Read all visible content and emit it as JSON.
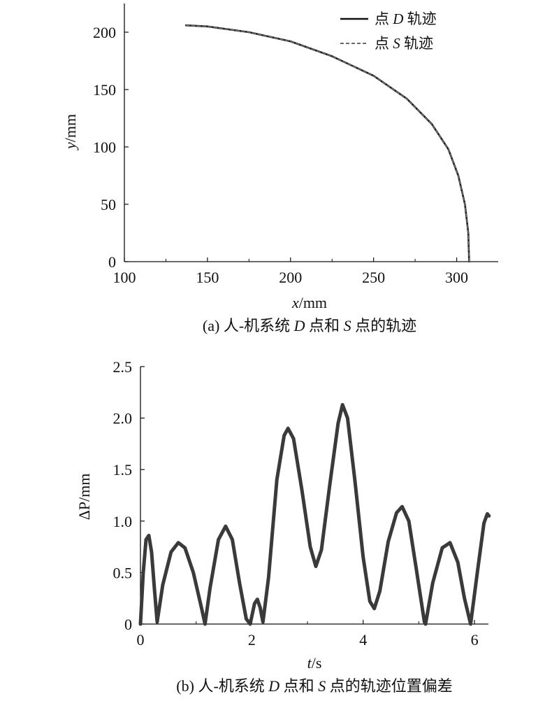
{
  "chart_data": [
    {
      "type": "line",
      "xlim": [
        100,
        325
      ],
      "ylim": [
        0,
        225
      ],
      "xticks": [
        "100",
        "150",
        "200",
        "250",
        "300"
      ],
      "yticks": [
        "0",
        "50",
        "100",
        "150",
        "200"
      ],
      "xlabel_var": "x",
      "xlabel_unit": "/mm",
      "ylabel_var": "y",
      "ylabel_unit": "/mm",
      "caption": {
        "prefix": "(a) 人-机系统 ",
        "d": "D",
        "mid": " 点和 ",
        "s": "S",
        "suffix": " 点的轨迹"
      },
      "legend": [
        {
          "prefix": "点 ",
          "var": "D",
          "suffix": " 轨迹",
          "style": "solid"
        },
        {
          "prefix": "点 ",
          "var": "S",
          "suffix": " 轨迹",
          "style": "dashed"
        }
      ],
      "series": [
        {
          "name": "点 D 轨迹",
          "points": [
            [
              137,
              206
            ],
            [
              150,
              205
            ],
            [
              175,
              200
            ],
            [
              200,
              192
            ],
            [
              225,
              179
            ],
            [
              250,
              162
            ],
            [
              270,
              142
            ],
            [
              285,
              120
            ],
            [
              295,
              98
            ],
            [
              301,
              75
            ],
            [
              305,
              50
            ],
            [
              307,
              25
            ],
            [
              307.5,
              0
            ]
          ]
        },
        {
          "name": "点 S 轨迹",
          "points": [
            [
              137,
              206
            ],
            [
              150,
              205
            ],
            [
              175,
              200
            ],
            [
              200,
              192
            ],
            [
              225,
              179
            ],
            [
              250,
              162
            ],
            [
              270,
              142
            ],
            [
              285,
              120
            ],
            [
              295,
              98
            ],
            [
              301,
              75
            ],
            [
              305,
              50
            ],
            [
              307,
              25
            ],
            [
              307.5,
              0
            ]
          ]
        }
      ]
    },
    {
      "type": "line",
      "xlim": [
        0,
        6.25
      ],
      "ylim": [
        0,
        2.5
      ],
      "xticks": [
        "0",
        "2",
        "4",
        "6"
      ],
      "yticks": [
        "0",
        "0.5",
        "1.0",
        "1.5",
        "2.0",
        "2.5"
      ],
      "xlabel_var": "t",
      "xlabel_unit": "/s",
      "ylabel_var": "ΔP",
      "ylabel_unit": "/mm",
      "caption": {
        "prefix": "(b) 人-机系统 ",
        "d": "D",
        "mid": " 点和 ",
        "s": "S",
        "suffix": " 点的轨迹位置偏差"
      },
      "series": [
        {
          "name": "ΔP",
          "points": [
            [
              0,
              0
            ],
            [
              0.05,
              0.5
            ],
            [
              0.1,
              0.82
            ],
            [
              0.15,
              0.86
            ],
            [
              0.2,
              0.7
            ],
            [
              0.25,
              0.35
            ],
            [
              0.3,
              0.02
            ],
            [
              0.4,
              0.38
            ],
            [
              0.55,
              0.7
            ],
            [
              0.68,
              0.79
            ],
            [
              0.8,
              0.74
            ],
            [
              0.95,
              0.5
            ],
            [
              1.1,
              0.15
            ],
            [
              1.16,
              0
            ],
            [
              1.25,
              0.35
            ],
            [
              1.4,
              0.82
            ],
            [
              1.53,
              0.95
            ],
            [
              1.65,
              0.82
            ],
            [
              1.78,
              0.4
            ],
            [
              1.9,
              0.05
            ],
            [
              1.97,
              0
            ],
            [
              2.05,
              0.2
            ],
            [
              2.1,
              0.24
            ],
            [
              2.15,
              0.16
            ],
            [
              2.2,
              0.02
            ],
            [
              2.3,
              0.45
            ],
            [
              2.45,
              1.4
            ],
            [
              2.58,
              1.83
            ],
            [
              2.65,
              1.9
            ],
            [
              2.75,
              1.8
            ],
            [
              2.9,
              1.3
            ],
            [
              3.05,
              0.75
            ],
            [
              3.15,
              0.56
            ],
            [
              3.25,
              0.72
            ],
            [
              3.4,
              1.35
            ],
            [
              3.55,
              1.95
            ],
            [
              3.63,
              2.13
            ],
            [
              3.72,
              2.0
            ],
            [
              3.85,
              1.4
            ],
            [
              4.0,
              0.65
            ],
            [
              4.12,
              0.22
            ],
            [
              4.2,
              0.15
            ],
            [
              4.3,
              0.32
            ],
            [
              4.45,
              0.8
            ],
            [
              4.6,
              1.08
            ],
            [
              4.7,
              1.14
            ],
            [
              4.82,
              1.0
            ],
            [
              4.95,
              0.55
            ],
            [
              5.1,
              0.02
            ],
            [
              5.12,
              0
            ],
            [
              5.25,
              0.4
            ],
            [
              5.42,
              0.74
            ],
            [
              5.56,
              0.79
            ],
            [
              5.7,
              0.6
            ],
            [
              5.82,
              0.25
            ],
            [
              5.93,
              0
            ],
            [
              6.05,
              0.5
            ],
            [
              6.17,
              0.98
            ],
            [
              6.23,
              1.07
            ],
            [
              6.26,
              1.05
            ]
          ]
        }
      ]
    }
  ]
}
